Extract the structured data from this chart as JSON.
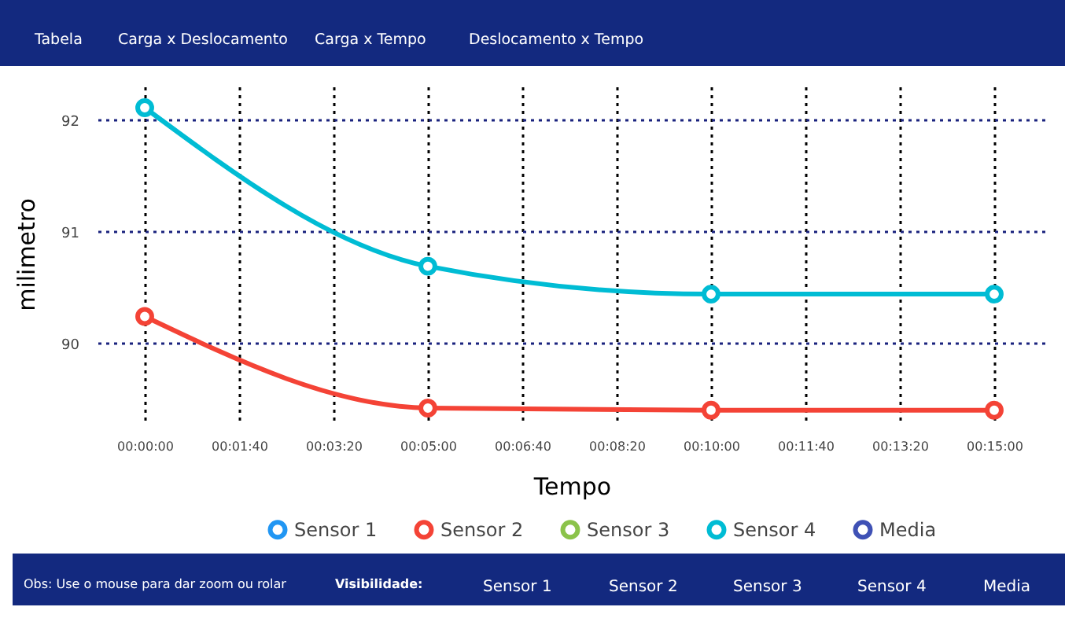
{
  "chart_data": {
    "type": "line",
    "xlabel": "Tempo",
    "ylabel": "milimetro",
    "annotations": [
      "Tabela",
      "Carga x Deslocamento",
      "Carga x Tempo",
      "Deslocamento x Tempo",
      "Obs: Use o mouse para dar zoom ou rolar",
      "Visibilidade:",
      "Sensor 1",
      "Sensor 2",
      "Sensor 3",
      "Sensor 4",
      "Media"
    ],
    "x": [
      0,
      300,
      600,
      900
    ],
    "series": [
      {
        "name": "Sensor 1",
        "color": "#2196f3",
        "values": [
          null,
          null,
          null,
          null
        ]
      },
      {
        "name": "Sensor 2",
        "color": "#f44336",
        "values": [
          90.24,
          89.42,
          89.4,
          89.4
        ]
      },
      {
        "name": "Sensor 3",
        "color": "#8bc34a",
        "values": [
          null,
          null,
          null,
          null
        ]
      },
      {
        "name": "Sensor 4",
        "color": "#00bcd4",
        "values": [
          92.11,
          90.69,
          90.44,
          90.44
        ]
      },
      {
        "name": "Media",
        "color": "#3f51b5",
        "values": [
          null,
          null,
          null,
          null
        ]
      }
    ],
    "xlim": [
      -50,
      955
    ],
    "ylim": [
      89.3,
      92.3
    ],
    "xticks": [
      {
        "value": 0,
        "label": "00:00:00"
      },
      {
        "value": 100,
        "label": "00:01:40"
      },
      {
        "value": 200,
        "label": "00:03:20"
      },
      {
        "value": 300,
        "label": "00:05:00"
      },
      {
        "value": 400,
        "label": "00:06:40"
      },
      {
        "value": 500,
        "label": "00:08:20"
      },
      {
        "value": 600,
        "label": "00:10:00"
      },
      {
        "value": 700,
        "label": "00:11:40"
      },
      {
        "value": 800,
        "label": "00:13:20"
      },
      {
        "value": 900,
        "label": "00:15:00"
      }
    ],
    "yticks": [
      90,
      91,
      92
    ],
    "grid": true,
    "legend": "bottom",
    "marker": "circle",
    "line_style": "solid"
  }
}
